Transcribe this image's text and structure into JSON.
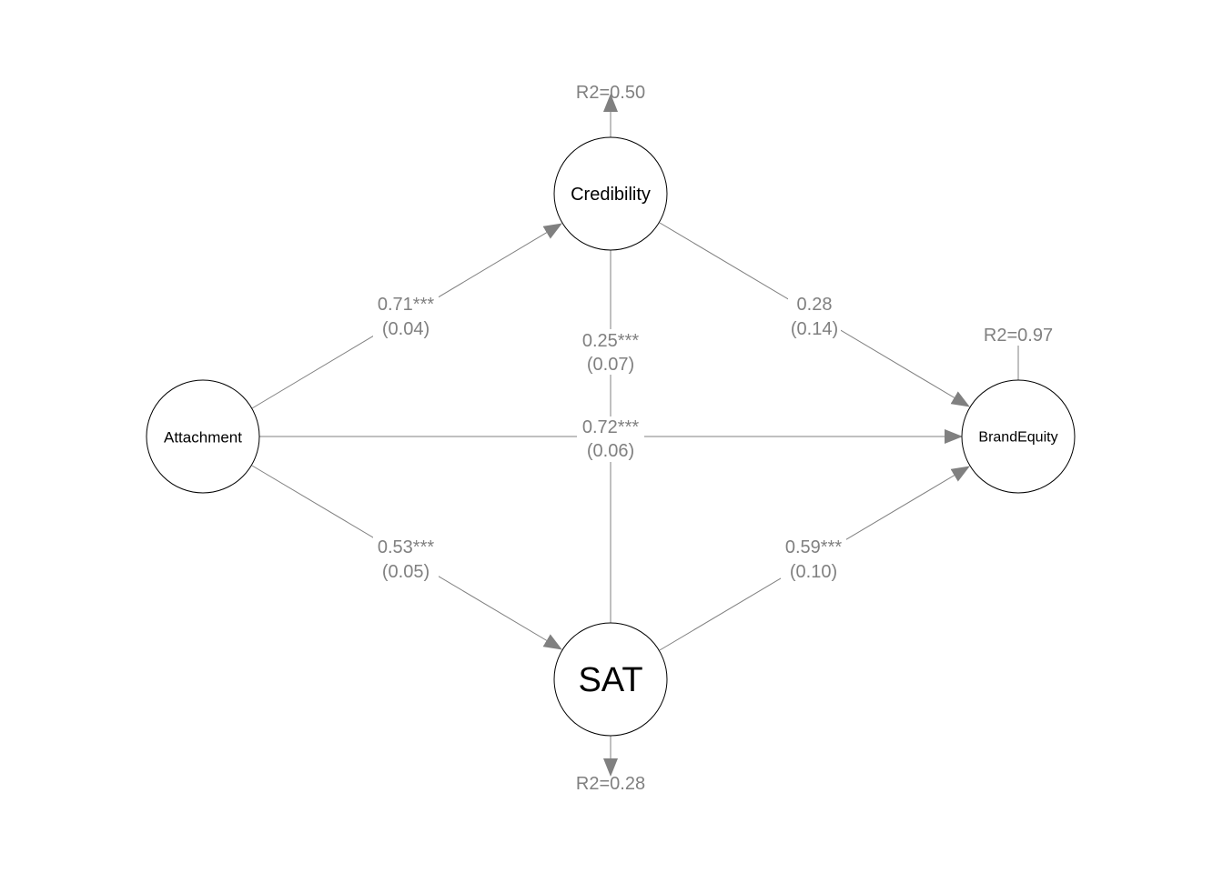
{
  "nodes": {
    "credibility": "Credibility",
    "attachment": "Attachment",
    "brandequity": "BrandEquity",
    "sat": "SAT"
  },
  "r2": {
    "credibility": "R2=0.50",
    "brandequity": "R2=0.97",
    "sat": "R2=0.28"
  },
  "paths": {
    "att_cred": {
      "est": "0.71***",
      "se": "(0.04)"
    },
    "cred_be": {
      "est": "0.28",
      "se": "(0.14)"
    },
    "att_sat": {
      "est": "0.53***",
      "se": "(0.05)"
    },
    "sat_be": {
      "est": "0.59***",
      "se": "(0.10)"
    },
    "att_be": {
      "est": "0.72***",
      "se": "(0.06)"
    },
    "cred_sat": {
      "est": "0.25***",
      "se": "(0.07)"
    }
  },
  "colors": {
    "edge": "#808080",
    "node_border": "#000000"
  }
}
